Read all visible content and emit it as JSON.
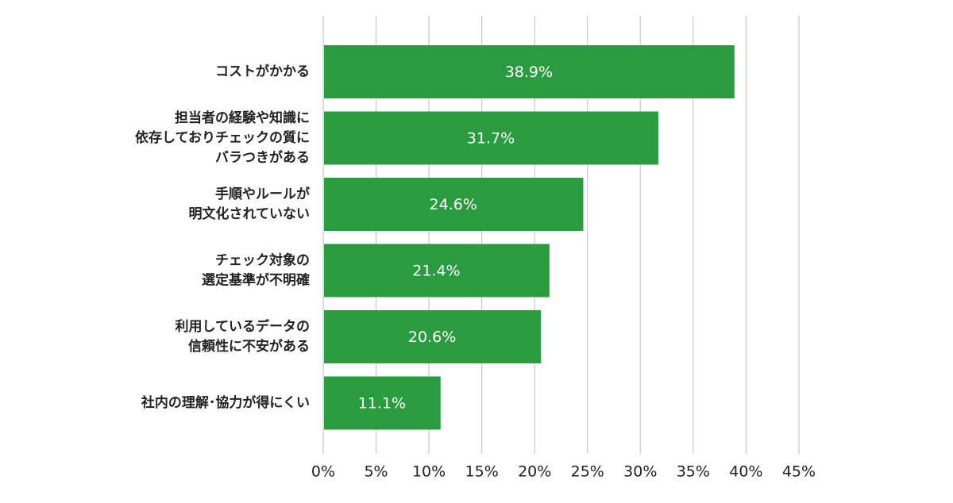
{
  "chart_data": {
    "type": "bar",
    "orientation": "horizontal",
    "categories": [
      [
        "コストがかかる"
      ],
      [
        "担当者の経験や知識に",
        "依存しておりチェックの質に",
        "バラつきがある"
      ],
      [
        "手順やルールが",
        "明文化されていない"
      ],
      [
        "チェック対象の",
        "選定基準が不明確"
      ],
      [
        "利用しているデータの",
        "信頼性に不安がある"
      ],
      [
        "社内の理解･協力が得にくい"
      ]
    ],
    "values": [
      38.9,
      31.7,
      24.6,
      21.4,
      20.6,
      11.1
    ],
    "value_labels": [
      "38.9%",
      "31.7%",
      "24.6%",
      "21.4%",
      "20.6%",
      "11.1%"
    ],
    "xlim": [
      0,
      45
    ],
    "x_ticks": [
      0,
      5,
      10,
      15,
      20,
      25,
      30,
      35,
      40,
      45
    ],
    "x_tick_labels": [
      "0%",
      "5%",
      "10%",
      "15%",
      "20%",
      "25%",
      "30%",
      "35%",
      "40%",
      "45%"
    ],
    "grid": "vertical",
    "legend": "none",
    "bar_color": "#2a9c3f",
    "grid_color": "#c8c8c8"
  }
}
